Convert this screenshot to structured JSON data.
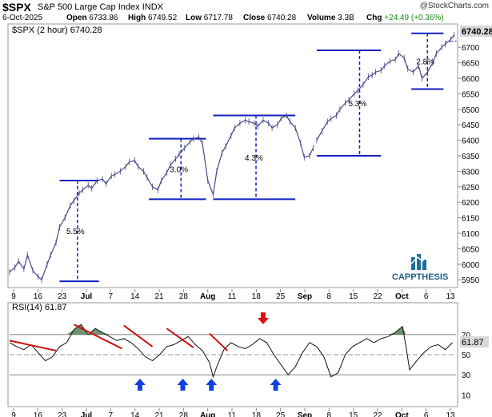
{
  "header": {
    "symbol": "$SPX",
    "name": "S&P 500 Large Cap Index",
    "exchange": "INDX",
    "credit": "@StockCharts.com",
    "date": "6-Oct-2025",
    "open_label": "Open",
    "open": "6733.86",
    "high_label": "High",
    "high": "6749.52",
    "low_label": "Low",
    "low": "6717.78",
    "close_label": "Close",
    "close": "6740.28",
    "volume_label": "Volume",
    "volume": "3.3B",
    "chg_label": "Chg",
    "chg": "+24.49 (+0.36%)"
  },
  "colors": {
    "price": "#4a4a8a",
    "channel": "#1020c0",
    "trend": "#d01010",
    "rsi_fill": "#4a7a4a",
    "up_arrow": "#1040e0",
    "down_arrow": "#e01010"
  },
  "logo": {
    "text": "CAPPTHESIS",
    "icon": "bar-chart-logo-icon"
  },
  "chart_data": [
    {
      "type": "line",
      "title": "$SPX (2 hour) 6740.28",
      "last_value_label": "6740.28",
      "ylim": [
        5930,
        6770
      ],
      "y_ticks": [
        5950,
        6000,
        6050,
        6100,
        6150,
        6200,
        6250,
        6300,
        6350,
        6400,
        6450,
        6500,
        6550,
        6600,
        6650,
        6700
      ],
      "x_labels": [
        "9",
        "16",
        "23",
        "Jul",
        "7",
        "14",
        "21",
        "28",
        "Aug",
        "11",
        "18",
        "25",
        "Sep",
        "8",
        "15",
        "22",
        "Oct",
        "6",
        "13"
      ],
      "series": [
        {
          "x": [
            0,
            3,
            5,
            8,
            10,
            13,
            16,
            18,
            21,
            23,
            26,
            28,
            31,
            34,
            36,
            39,
            41,
            44,
            46,
            49,
            52,
            54,
            57,
            59,
            62,
            65,
            67,
            70,
            72,
            75,
            77,
            80,
            83,
            85,
            88,
            90,
            93,
            95,
            98,
            101,
            103,
            106,
            108,
            111,
            114,
            116,
            119,
            121,
            124,
            126,
            129,
            132,
            134,
            137,
            139,
            142,
            145,
            147,
            150,
            152,
            155,
            157,
            160,
            163,
            165,
            168,
            170
          ],
          "y": [
            5975,
            5990,
            6010,
            5985,
            6030,
            5980,
            5960,
            5950,
            6000,
            6030,
            6070,
            6120,
            6150,
            6190,
            6205,
            6230,
            6240,
            6255,
            6245,
            6270,
            6275,
            6260,
            6285,
            6290,
            6300,
            6315,
            6330,
            6335,
            6315,
            6300,
            6280,
            6250,
            6240,
            6270,
            6295,
            6320,
            6340,
            6355,
            6375,
            6395,
            6405,
            6410,
            6390,
            6270,
            6225,
            6300,
            6360,
            6380,
            6415,
            6440,
            6455,
            6465,
            6460,
            6455,
            6445,
            6465,
            6455,
            6440,
            6450,
            6470,
            6480,
            6460,
            6440,
            6390,
            6345,
            6350,
            6375
          ]
        },
        {
          "x": [
            172,
            175,
            178,
            180,
            183,
            185,
            188,
            190,
            193,
            195,
            198,
            201,
            203,
            205,
            208,
            210,
            213,
            216,
            218,
            221,
            223,
            226,
            229,
            231,
            234,
            237,
            239,
            242,
            244,
            247,
            249
          ],
          "y": [
            6400,
            6430,
            6460,
            6470,
            6480,
            6500,
            6520,
            6530,
            6550,
            6560,
            6580,
            6605,
            6610,
            6620,
            6625,
            6640,
            6655,
            6660,
            6680,
            6665,
            6630,
            6620,
            6640,
            6600,
            6620,
            6650,
            6680,
            6700,
            6710,
            6725,
            6740
          ]
        }
      ],
      "annotations": [
        {
          "label": "5.5%",
          "top": 6270,
          "bottom": 5945,
          "x_from": 28,
          "x_to": 50,
          "x_vline": 38
        },
        {
          "label": "3.0%",
          "top": 6405,
          "bottom": 6210,
          "x_from": 78,
          "x_to": 110,
          "x_vline": 96
        },
        {
          "label": "4.3%",
          "top": 6480,
          "bottom": 6210,
          "x_from": 114,
          "x_to": 160,
          "x_vline": 138
        },
        {
          "label": "5.3%",
          "top": 6690,
          "bottom": 6350,
          "x_from": 172,
          "x_to": 208,
          "x_vline": 196
        },
        {
          "label": "2.8%",
          "top": 6745,
          "bottom": 6565,
          "x_from": 225,
          "x_to": 243,
          "x_vline": 234
        }
      ]
    },
    {
      "type": "line",
      "title": "RSI(14) 61.87",
      "last_value_label": "61.87",
      "ylim": [
        0,
        100
      ],
      "y_ticks": [
        10,
        30,
        50,
        70
      ],
      "reference_lines": [
        70,
        50,
        30
      ],
      "x_labels": [
        "9",
        "16",
        "23",
        "Jul",
        "7",
        "14",
        "21",
        "28",
        "Aug",
        "11",
        "18",
        "25",
        "Sep",
        "8",
        "15",
        "22",
        "Oct",
        "6",
        "13"
      ],
      "series": [
        {
          "x": [
            0,
            4,
            8,
            12,
            16,
            20,
            24,
            28,
            32,
            36,
            40,
            44,
            48,
            52,
            56,
            60,
            64,
            68,
            72,
            76,
            80,
            84,
            88,
            92,
            96,
            100,
            104,
            108,
            112,
            114,
            116,
            120,
            124,
            128,
            132,
            136,
            140,
            144,
            148,
            152,
            156,
            160,
            164,
            168,
            172,
            176,
            180,
            184,
            188,
            192,
            196,
            200,
            204,
            208,
            212,
            216,
            220,
            222,
            224,
            228,
            232,
            236,
            240,
            244,
            248
          ],
          "y": [
            62,
            58,
            55,
            60,
            52,
            44,
            48,
            58,
            62,
            75,
            80,
            70,
            76,
            72,
            68,
            64,
            66,
            62,
            56,
            48,
            44,
            50,
            58,
            60,
            64,
            68,
            60,
            54,
            42,
            28,
            38,
            55,
            62,
            58,
            56,
            60,
            66,
            62,
            50,
            40,
            30,
            38,
            52,
            62,
            58,
            48,
            28,
            32,
            50,
            58,
            62,
            66,
            62,
            66,
            68,
            72,
            78,
            58,
            35,
            44,
            52,
            58,
            60,
            55,
            62
          ]
        }
      ],
      "trend_lines": [
        {
          "from": [
            0,
            64
          ],
          "to": [
            26,
            54
          ]
        },
        {
          "from": [
            36,
            80
          ],
          "to": [
            63,
            56
          ]
        },
        {
          "from": [
            64,
            79
          ],
          "to": [
            80,
            58
          ]
        },
        {
          "from": [
            88,
            76
          ],
          "to": [
            103,
            57
          ]
        },
        {
          "from": [
            112,
            71
          ],
          "to": [
            122,
            54
          ]
        }
      ],
      "up_arrows": [
        73,
        97,
        113,
        149
      ],
      "down_arrows": [
        142
      ]
    }
  ]
}
